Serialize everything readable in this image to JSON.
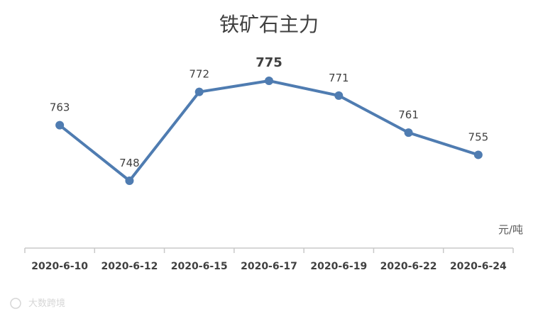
{
  "chart_data": {
    "type": "line",
    "title": "铁矿石主力",
    "unit_label": "元/吨",
    "categories": [
      "2020-6-10",
      "2020-6-12",
      "2020-6-15",
      "2020-6-17",
      "2020-6-19",
      "2020-6-22",
      "2020-6-24"
    ],
    "values": [
      763,
      748,
      772,
      775,
      771,
      761,
      755
    ],
    "highlight_index": 3,
    "ylim": [
      735,
      780
    ],
    "grid": false,
    "legend": "none",
    "line_color": "#4f7cb1",
    "axis_color": "#c8c8c8"
  },
  "watermark": "大数跨境"
}
